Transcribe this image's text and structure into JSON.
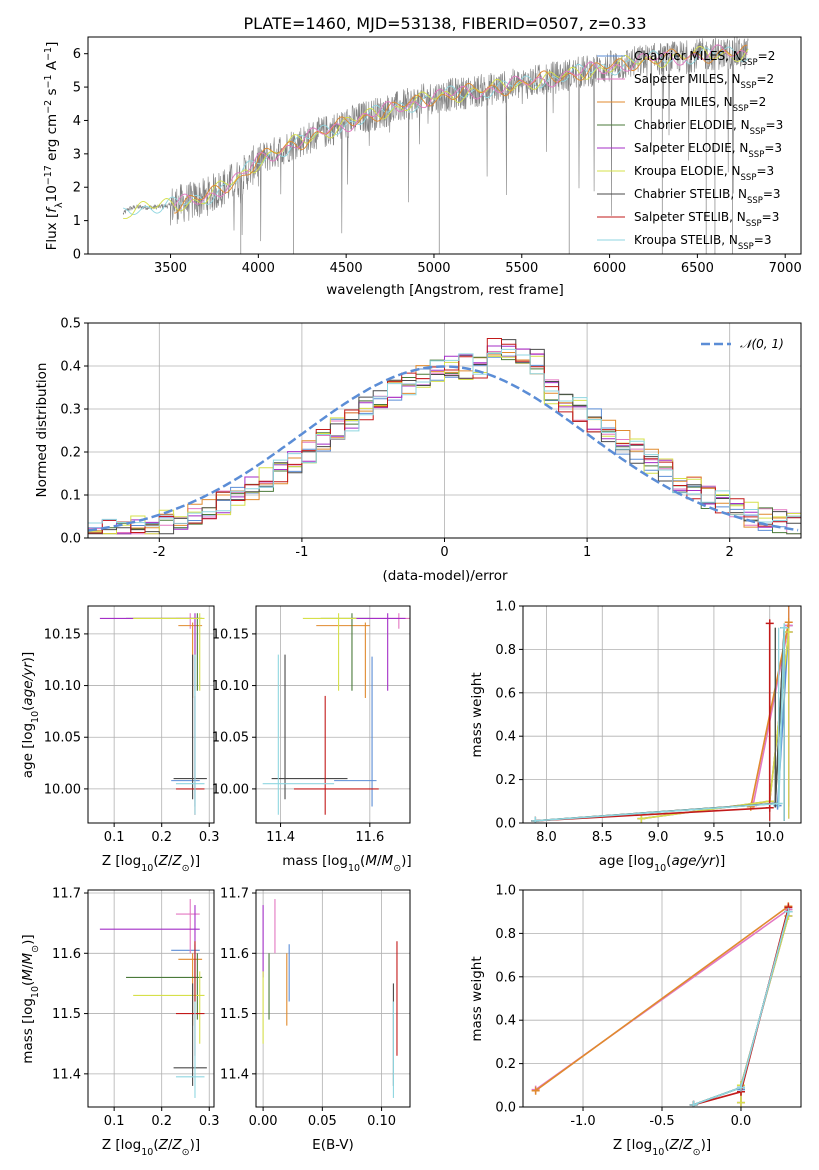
{
  "title": "PLATE=1460, MJD=53138, FIBERID=0507, z=0.33",
  "colors": {
    "Chabrier MILES": "#5b8dd6",
    "Salpeter MILES": "#e377c2",
    "Kroupa MILES": "#e08a2e",
    "Chabrier ELODIE": "#4a7a3a",
    "Salpeter ELODIE": "#a42fc7",
    "Kroupa ELODIE": "#d6e04a",
    "Chabrier STELIB": "#4a4a4a",
    "Salpeter STELIB": "#c21a1a",
    "Kroupa STELIB": "#8fd6e0",
    "data": "#808080",
    "gaussian": "#5b8dd6"
  },
  "chart_data": [
    {
      "id": "spectrum",
      "type": "line",
      "xlabel": "wavelength [Angstrom, rest frame]",
      "ylabel": "Flux [fλ10⁻¹⁷ erg cm⁻² s⁻¹ A⁻¹]",
      "xlim": [
        3030,
        7090
      ],
      "ylim": [
        0,
        6.5
      ],
      "xticks": [
        3500,
        4000,
        4500,
        5000,
        5500,
        6000,
        6500,
        7000
      ],
      "yticks": [
        0,
        1,
        2,
        3,
        4,
        5,
        6
      ],
      "legend_position": "upper right",
      "legend": [
        {
          "name": "Chabrier MILES",
          "text": "Chabrier MILES, N",
          "sub": "SSP",
          "tail": "=2"
        },
        {
          "name": "Salpeter MILES",
          "text": "Salpeter MILES, N",
          "sub": "SSP",
          "tail": "=2"
        },
        {
          "name": "Kroupa MILES",
          "text": "Kroupa MILES, N",
          "sub": "SSP",
          "tail": "=2"
        },
        {
          "name": "Chabrier ELODIE",
          "text": "Chabrier ELODIE, N",
          "sub": "SSP",
          "tail": "=3"
        },
        {
          "name": "Salpeter ELODIE",
          "text": "Salpeter ELODIE, N",
          "sub": "SSP",
          "tail": "=3"
        },
        {
          "name": "Kroupa ELODIE",
          "text": "Kroupa ELODIE, N",
          "sub": "SSP",
          "tail": "=3"
        },
        {
          "name": "Chabrier STELIB",
          "text": "Chabrier STELIB, N",
          "sub": "SSP",
          "tail": "=3"
        },
        {
          "name": "Salpeter STELIB",
          "text": "Salpeter STELIB, N",
          "sub": "SSP",
          "tail": "=3"
        },
        {
          "name": "Kroupa STELIB",
          "text": "Kroupa STELIB, N",
          "sub": "SSP",
          "tail": "=3"
        }
      ],
      "continuum": {
        "x": [
          3230,
          3260,
          3300,
          3400,
          3500,
          3600,
          3700,
          3800,
          3900,
          4000,
          4200,
          4400,
          4600,
          4800,
          5000,
          5200,
          5400,
          5600,
          5800,
          6000,
          6200,
          6400,
          6600,
          6800
        ],
        "y": [
          1.2,
          1.35,
          1.4,
          1.4,
          1.45,
          1.55,
          1.7,
          2.0,
          2.3,
          2.8,
          3.3,
          3.7,
          4.1,
          4.4,
          4.7,
          4.85,
          5.0,
          5.2,
          5.4,
          5.6,
          5.8,
          5.9,
          6.0,
          6.0
        ]
      }
    },
    {
      "id": "residuals",
      "type": "histogram",
      "xlabel": "(data-model)/error",
      "ylabel": "Normed distribution",
      "xlim": [
        -2.5,
        2.5
      ],
      "ylim": [
        0,
        0.5
      ],
      "xticks": [
        -2,
        -1,
        0,
        1,
        2
      ],
      "yticks": [
        0.0,
        0.1,
        0.2,
        0.3,
        0.4,
        0.5
      ],
      "legend_position": "upper right",
      "gaussian_label": "𝒩(0, 1)",
      "bin_width": 0.1
    },
    {
      "id": "age-vs-Z",
      "type": "scatter",
      "xlabel": "Z [log10(Z/Z☉)]",
      "ylabel": "age  [log10(age/yr)]",
      "xlim": [
        0.045,
        0.31
      ],
      "ylim": [
        9.967,
        10.177
      ],
      "xticks": [
        0.1,
        0.2,
        0.3
      ],
      "yticks": [
        10.0,
        10.05,
        10.1,
        10.15
      ]
    },
    {
      "id": "age-vs-mass",
      "type": "scatter",
      "xlabel": "mass [log10(M/M☉)]",
      "ylabel": "",
      "xlim": [
        11.345,
        11.69
      ],
      "ylim": [
        9.967,
        10.177
      ],
      "xticks": [
        11.4,
        11.6
      ],
      "yticks": [
        10.0,
        10.05,
        10.1,
        10.15
      ]
    },
    {
      "id": "weight-vs-age",
      "type": "line",
      "xlabel": "age  [log10(age/yr)]",
      "ylabel": "mass weight",
      "xlim": [
        7.79,
        10.28
      ],
      "ylim": [
        0,
        1.0
      ],
      "xticks": [
        8.0,
        8.5,
        9.0,
        9.5,
        10.0
      ],
      "yticks": [
        0.0,
        0.2,
        0.4,
        0.6,
        0.8,
        1.0
      ]
    },
    {
      "id": "mass-vs-Z",
      "type": "scatter",
      "xlabel": "Z [log10(Z/Z☉)]",
      "ylabel": "mass [log10(M/M☉)]",
      "xlim": [
        0.045,
        0.31
      ],
      "ylim": [
        11.345,
        11.705
      ],
      "xticks": [
        0.1,
        0.2,
        0.3
      ],
      "yticks": [
        11.4,
        11.5,
        11.6,
        11.7
      ]
    },
    {
      "id": "mass-vs-EBV",
      "type": "scatter",
      "xlabel": "E(B-V)",
      "ylabel": "",
      "xlim": [
        -0.006,
        0.124
      ],
      "ylim": [
        11.345,
        11.705
      ],
      "xticks": [
        0.0,
        0.05,
        0.1
      ],
      "yticks": [
        11.4,
        11.5,
        11.6,
        11.7
      ]
    },
    {
      "id": "weight-vs-Z",
      "type": "line",
      "xlabel": "Z [log10(Z/Z☉)]",
      "ylabel": "mass weight",
      "xlim": [
        -1.38,
        0.38
      ],
      "ylim": [
        0,
        1.0
      ],
      "xticks": [
        -1.0,
        -0.5,
        0.0
      ],
      "yticks": [
        0.0,
        0.2,
        0.4,
        0.6,
        0.8,
        1.0
      ]
    }
  ],
  "fits": [
    {
      "name": "Chabrier MILES",
      "Z": 0.27,
      "Zerr": [
        0.05,
        0.01
      ],
      "age": 10.008,
      "ageerr": [
        0.025,
        0.12
      ],
      "mass": 11.605,
      "massErr": [
        11.52,
        11.615
      ],
      "ebv": 0.022,
      "ssp_age": [
        10.07,
        10.17
      ],
      "ssp_w": [
        0.08,
        0.91
      ],
      "ssp_Z": [
        0.0,
        0.3
      ]
    },
    {
      "name": "Salpeter MILES",
      "Z": 0.26,
      "Zerr": [
        0.03,
        0.02
      ],
      "age": 10.165,
      "ageerr": [
        0.01,
        0.005
      ],
      "mass": 11.665,
      "massErr": [
        11.6,
        11.69
      ],
      "ebv": 0.01,
      "ssp_age": [
        9.85,
        10.17
      ],
      "ssp_w": [
        0.08,
        0.91
      ],
      "ssp_Z": [
        -1.3,
        0.3
      ]
    },
    {
      "name": "Kroupa MILES",
      "Z": 0.265,
      "Zerr": [
        0.03,
        0.02
      ],
      "age": 10.158,
      "ageerr": [
        0.07,
        0.003
      ],
      "mass": 11.59,
      "massErr": [
        11.48,
        11.6
      ],
      "ebv": 0.02,
      "ssp_age": [
        9.83,
        10.17
      ],
      "ssp_w": [
        0.075,
        0.925
      ],
      "ssp_Z": [
        -1.3,
        0.3
      ]
    },
    {
      "name": "Chabrier ELODIE",
      "Z": 0.275,
      "Zerr": [
        0.15,
        0.01
      ],
      "age": 10.165,
      "ageerr": [
        0.07,
        0.005
      ],
      "mass": 11.56,
      "massErr": [
        11.49,
        11.6
      ],
      "ebv": 0.005,
      "ssp_age": [
        7.9,
        10.05,
        10.13
      ],
      "ssp_w": [
        0.01,
        0.09,
        0.9
      ],
      "ssp_Z": [
        -0.3,
        0.0,
        0.3
      ]
    },
    {
      "name": "Salpeter ELODIE",
      "Z": 0.27,
      "Zerr": [
        0.2,
        0.01
      ],
      "age": 10.165,
      "ageerr": [
        0.07,
        0.005
      ],
      "mass": 11.64,
      "massErr": [
        11.56,
        11.68
      ],
      "ebv": 0.0,
      "ssp_age": [
        8.85,
        10.0,
        10.17
      ],
      "ssp_w": [
        0.02,
        0.1,
        0.88
      ],
      "ssp_Z": [
        0.0,
        0.0,
        0.3
      ]
    },
    {
      "name": "Kroupa ELODIE",
      "Z": 0.28,
      "Zerr": [
        0.14,
        0.01
      ],
      "age": 10.165,
      "ageerr": [
        0.07,
        0.005
      ],
      "mass": 11.53,
      "massErr": [
        11.45,
        11.57
      ],
      "ebv": 0.0,
      "ssp_age": [
        8.85,
        10.0,
        10.17
      ],
      "ssp_w": [
        0.02,
        0.1,
        0.88
      ],
      "ssp_Z": [
        0.0,
        0.0,
        0.3
      ]
    },
    {
      "name": "Chabrier STELIB",
      "Z": 0.265,
      "Zerr": [
        0.04,
        0.03
      ],
      "age": 10.01,
      "ageerr": [
        0.02,
        0.12
      ],
      "mass": 11.41,
      "massErr": [
        11.38,
        11.55
      ],
      "ebv": 0.11,
      "ssp_age": [
        7.9,
        10.05,
        10.13
      ],
      "ssp_w": [
        0.01,
        0.09,
        0.9
      ],
      "ssp_Z": [
        -0.3,
        0.0,
        0.3
      ]
    },
    {
      "name": "Salpeter STELIB",
      "Z": 0.27,
      "Zerr": [
        0.04,
        0.02
      ],
      "age": 10.0,
      "ageerr": [
        0.025,
        0.09
      ],
      "mass": 11.5,
      "massErr": [
        11.43,
        11.62
      ],
      "ebv": 0.113,
      "ssp_age": [
        7.9,
        10.0,
        10.0
      ],
      "ssp_w": [
        0.01,
        0.07,
        0.92
      ],
      "ssp_Z": [
        -0.3,
        0.0,
        0.3
      ]
    },
    {
      "name": "Kroupa STELIB",
      "Z": 0.27,
      "Zerr": [
        0.04,
        0.02
      ],
      "age": 10.005,
      "ageerr": [
        0.03,
        0.125
      ],
      "mass": 11.395,
      "massErr": [
        11.36,
        11.52
      ],
      "ebv": 0.11,
      "ssp_age": [
        7.9,
        10.08,
        10.13
      ],
      "ssp_w": [
        0.01,
        0.09,
        0.9
      ],
      "ssp_Z": [
        -0.3,
        0.0,
        0.3
      ]
    }
  ]
}
